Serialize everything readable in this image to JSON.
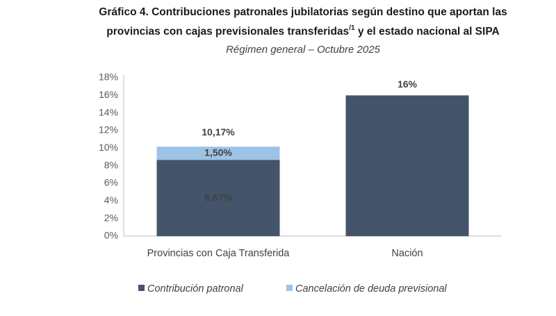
{
  "chart_data": {
    "type": "stacked_bar",
    "title": {
      "line1": "Gráfico 4. Contribuciones patronales jubilatorias según destino que aportan las",
      "line2a": "provincias con cajas previsionales transferidas",
      "sup": "/1",
      "line2b": "y el estado nacional al SIPA"
    },
    "subtitle": "Régimen general – Octubre 2025",
    "categories": [
      "Provincias con Caja Transferida",
      "Nación"
    ],
    "series": [
      {
        "name": "Contribución patronal",
        "color": "#44546a",
        "values": [
          8.67,
          16
        ],
        "value_labels": [
          "8,67%",
          "16%"
        ]
      },
      {
        "name": "Cancelación de deuda previsional",
        "color": "#9dc3e6",
        "values": [
          1.5,
          null
        ],
        "value_labels": [
          "1,50%",
          null
        ]
      }
    ],
    "totals": [
      10.17,
      null
    ],
    "total_labels": [
      "10,17%",
      null
    ],
    "ylim": [
      0,
      18
    ],
    "yticks": [
      {
        "value": 0,
        "label": "0%"
      },
      {
        "value": 2,
        "label": "2%"
      },
      {
        "value": 4,
        "label": "4%"
      },
      {
        "value": 6,
        "label": "6%"
      },
      {
        "value": 8,
        "label": "8%"
      },
      {
        "value": 10,
        "label": "10%"
      },
      {
        "value": 12,
        "label": "12%"
      },
      {
        "value": 14,
        "label": "14%"
      },
      {
        "value": 16,
        "label": "16%"
      },
      {
        "value": 18,
        "label": "18%"
      }
    ],
    "legend": "bottom",
    "grid": false
  }
}
